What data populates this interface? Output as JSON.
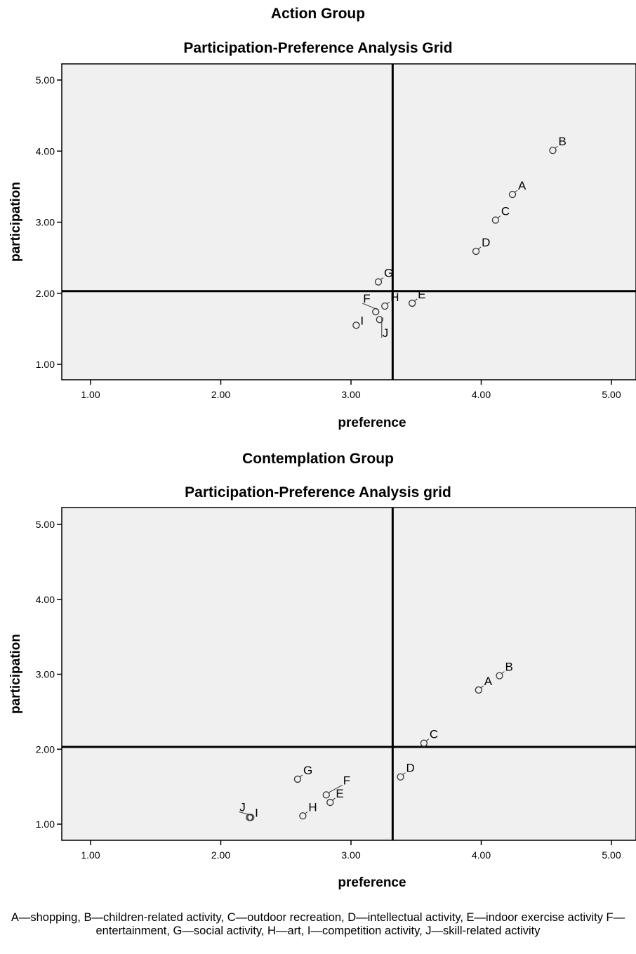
{
  "chart_data": [
    {
      "type": "scatter",
      "group_title": "Action Group",
      "title": "Participation-Preference Analysis Grid",
      "xlabel": "preference",
      "ylabel": "participation",
      "xlim": [
        0.8,
        5.0
      ],
      "ylim": [
        0.78,
        5.25
      ],
      "xticks": [
        "1.00",
        "2.00",
        "3.00",
        "4.00",
        "5.00"
      ],
      "yticks": [
        "1.00",
        "2.00",
        "3.00",
        "4.00",
        "5.00"
      ],
      "reference_lines": {
        "x": 3.32,
        "y": 2.03
      },
      "points": [
        {
          "label": "A",
          "x": 4.24,
          "y": 3.39
        },
        {
          "label": "B",
          "x": 4.55,
          "y": 4.01
        },
        {
          "label": "C",
          "x": 4.11,
          "y": 3.03
        },
        {
          "label": "D",
          "x": 3.96,
          "y": 2.59
        },
        {
          "label": "E",
          "x": 3.47,
          "y": 1.86
        },
        {
          "label": "F",
          "x": 3.19,
          "y": 1.74
        },
        {
          "label": "G",
          "x": 3.21,
          "y": 2.16
        },
        {
          "label": "H",
          "x": 3.26,
          "y": 1.82
        },
        {
          "label": "I",
          "x": 3.04,
          "y": 1.55
        },
        {
          "label": "J",
          "x": 3.22,
          "y": 1.63
        }
      ]
    },
    {
      "type": "scatter",
      "group_title": "Contemplation Group",
      "title": "Participation-Preference Analysis grid",
      "xlabel": "preference",
      "ylabel": "participation",
      "xlim": [
        0.8,
        5.0
      ],
      "ylim": [
        0.78,
        5.21
      ],
      "xticks": [
        "1.00",
        "2.00",
        "3.00",
        "4.00",
        "5.00"
      ],
      "yticks": [
        "1.00",
        "2.00",
        "3.00",
        "4.00",
        "5.00"
      ],
      "reference_lines": {
        "x": 3.32,
        "y": 2.03
      },
      "points": [
        {
          "label": "A",
          "x": 3.98,
          "y": 2.79
        },
        {
          "label": "B",
          "x": 4.14,
          "y": 2.98
        },
        {
          "label": "C",
          "x": 3.56,
          "y": 2.08
        },
        {
          "label": "D",
          "x": 3.38,
          "y": 1.63
        },
        {
          "label": "E",
          "x": 2.84,
          "y": 1.29
        },
        {
          "label": "F",
          "x": 2.81,
          "y": 1.39
        },
        {
          "label": "G",
          "x": 2.59,
          "y": 1.6
        },
        {
          "label": "H",
          "x": 2.63,
          "y": 1.11
        },
        {
          "label": "I",
          "x": 2.23,
          "y": 1.09
        },
        {
          "label": "J",
          "x": 2.22,
          "y": 1.09
        }
      ]
    }
  ],
  "caption": "A—shopping,  B—children-related activity, C—outdoor recreation, D—intellectual activity, E—indoor exercise activity F—entertainment, G—social activity, H—art, I—competition activity, J—skill-related activity"
}
